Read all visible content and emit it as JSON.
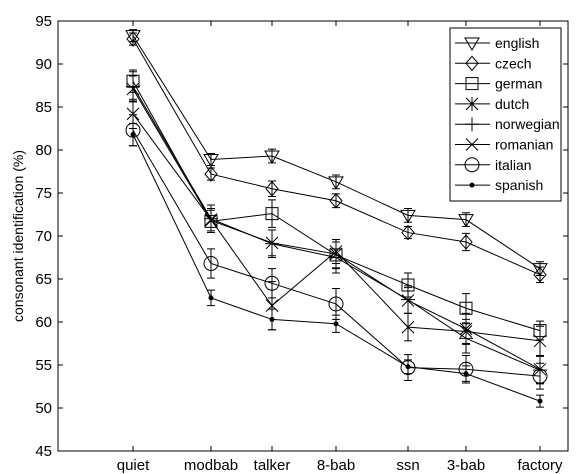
{
  "chart_data": {
    "type": "line",
    "title": "",
    "xlabel": "",
    "ylabel": "consonant identification (%)",
    "ylim": [
      45,
      95
    ],
    "yticks": [
      45,
      50,
      55,
      60,
      65,
      70,
      75,
      80,
      85,
      90,
      95
    ],
    "categories": [
      "quiet",
      "modbab",
      "talker",
      "8-bab",
      "ssn",
      "3-bab",
      "factory"
    ],
    "grid": false,
    "legend_position": "top-right",
    "series": [
      {
        "name": "english",
        "marker": "triangle-down",
        "values": [
          93.3,
          78.9,
          79.3,
          76.3,
          72.4,
          71.9,
          66.2
        ],
        "errors": [
          0.7,
          0.7,
          0.8,
          0.8,
          0.8,
          0.8,
          0.8
        ]
      },
      {
        "name": "czech",
        "marker": "diamond",
        "values": [
          92.9,
          77.2,
          75.5,
          74.1,
          70.4,
          69.3,
          65.5
        ],
        "errors": [
          0.7,
          0.7,
          0.9,
          0.8,
          0.7,
          1.0,
          0.9
        ]
      },
      {
        "name": "german",
        "marker": "square",
        "values": [
          88.0,
          71.7,
          72.6,
          67.8,
          64.3,
          61.6,
          59.0
        ],
        "errors": [
          1.3,
          1.3,
          1.6,
          1.5,
          1.4,
          1.7,
          1.1
        ]
      },
      {
        "name": "dutch",
        "marker": "asterisk",
        "values": [
          87.1,
          71.8,
          69.2,
          67.9,
          62.5,
          59.2,
          54.5
        ],
        "errors": [
          1.5,
          1.4,
          1.5,
          1.7,
          1.5,
          1.8,
          1.6
        ]
      },
      {
        "name": "norwegian",
        "marker": "plus",
        "values": [
          87.4,
          72.0,
          69.1,
          67.5,
          62.6,
          58.1,
          54.4
        ],
        "errors": [
          1.7,
          1.6,
          1.6,
          1.8,
          1.6,
          1.7,
          1.6
        ]
      },
      {
        "name": "romanian",
        "marker": "x",
        "values": [
          84.2,
          71.9,
          61.9,
          68.2,
          59.4,
          58.9,
          57.8
        ],
        "errors": [
          1.7,
          1.3,
          2.8,
          1.4,
          1.6,
          1.4,
          1.7
        ]
      },
      {
        "name": "italian",
        "marker": "circle",
        "values": [
          82.3,
          66.8,
          64.5,
          62.1,
          54.7,
          54.5,
          53.7
        ],
        "errors": [
          1.8,
          1.7,
          1.7,
          1.8,
          1.5,
          1.6,
          1.5
        ]
      },
      {
        "name": "spanish",
        "marker": "dot",
        "values": [
          81.8,
          62.8,
          60.3,
          59.8,
          54.8,
          54.0,
          50.8
        ],
        "errors": [
          1.3,
          0.9,
          1.2,
          1.0,
          0.8,
          0.9,
          0.7
        ]
      }
    ]
  }
}
